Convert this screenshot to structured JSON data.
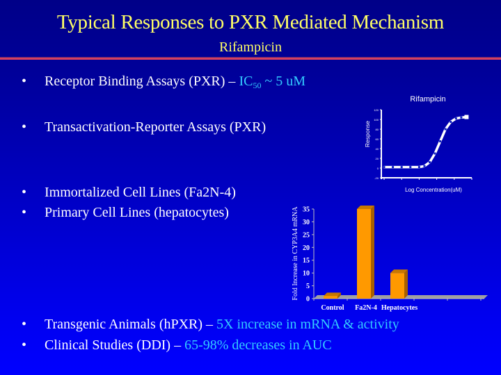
{
  "slide": {
    "title": "Typical Responses to PXR Mediated Mechanism",
    "subtitle": "Rifampicin",
    "colors": {
      "background_top": "#000088",
      "background_bottom": "#0000ff",
      "title": "#ffff66",
      "body_text": "#ffffff",
      "highlight": "#33ccff",
      "rule": "#d44060",
      "bar_fill": "#ff9900",
      "bar_side": "#a86000",
      "floor": "#a0a0a0"
    },
    "bullets": [
      {
        "symbol": "•",
        "text": "Receptor Binding Assays (PXR) – ",
        "highlight_prefix": "IC",
        "highlight_sub": "50",
        "highlight_suffix": " ~ 5 uM"
      },
      {
        "symbol": "•",
        "text": "Transactivation-Reporter Assays (PXR)"
      },
      {
        "symbol": "•",
        "text": "Immortalized Cell Lines (Fa2N-4)"
      },
      {
        "symbol": "•",
        "text": "Primary Cell Lines (hepatocytes)"
      },
      {
        "symbol": "•",
        "text": "Transgenic Animals (hPXR) – ",
        "highlight": "5X increase in mRNA & activity"
      },
      {
        "symbol": "•",
        "text": "Clinical Studies (DDI) – ",
        "highlight": "65-98% decreases in AUC"
      }
    ]
  },
  "chart_data": [
    {
      "type": "line",
      "title": "Rifampicin",
      "xlabel": "Log Concentration(uM)",
      "ylabel": "Response",
      "y_ticks": [
        "-20",
        "0",
        "20",
        "40",
        "60",
        "80",
        "100",
        "120"
      ],
      "ylim": [
        -20,
        120
      ],
      "x_tick_count": 6,
      "grid": false,
      "series": [
        {
          "name": "Rifampicin",
          "x": [
            0,
            0.5,
            1,
            1.5,
            2,
            2.3,
            2.6,
            2.9,
            3.2,
            3.5,
            3.8,
            4.1,
            4.4,
            4.7
          ],
          "values": [
            2,
            2,
            2,
            2,
            2,
            4,
            12,
            30,
            55,
            80,
            95,
            102,
            104,
            105
          ]
        }
      ]
    },
    {
      "type": "bar",
      "title": "",
      "xlabel": "",
      "ylabel": "Fold Increase in CYP3A4 mRNA",
      "categories": [
        "Control",
        "Fa2N-4",
        "Hepatocytes"
      ],
      "values": [
        1,
        35,
        10
      ],
      "y_ticks": [
        "0",
        "5",
        "10",
        "15",
        "20",
        "25",
        "30",
        "35"
      ],
      "ylim": [
        0,
        35
      ],
      "style": "3d",
      "legend": "none"
    }
  ]
}
